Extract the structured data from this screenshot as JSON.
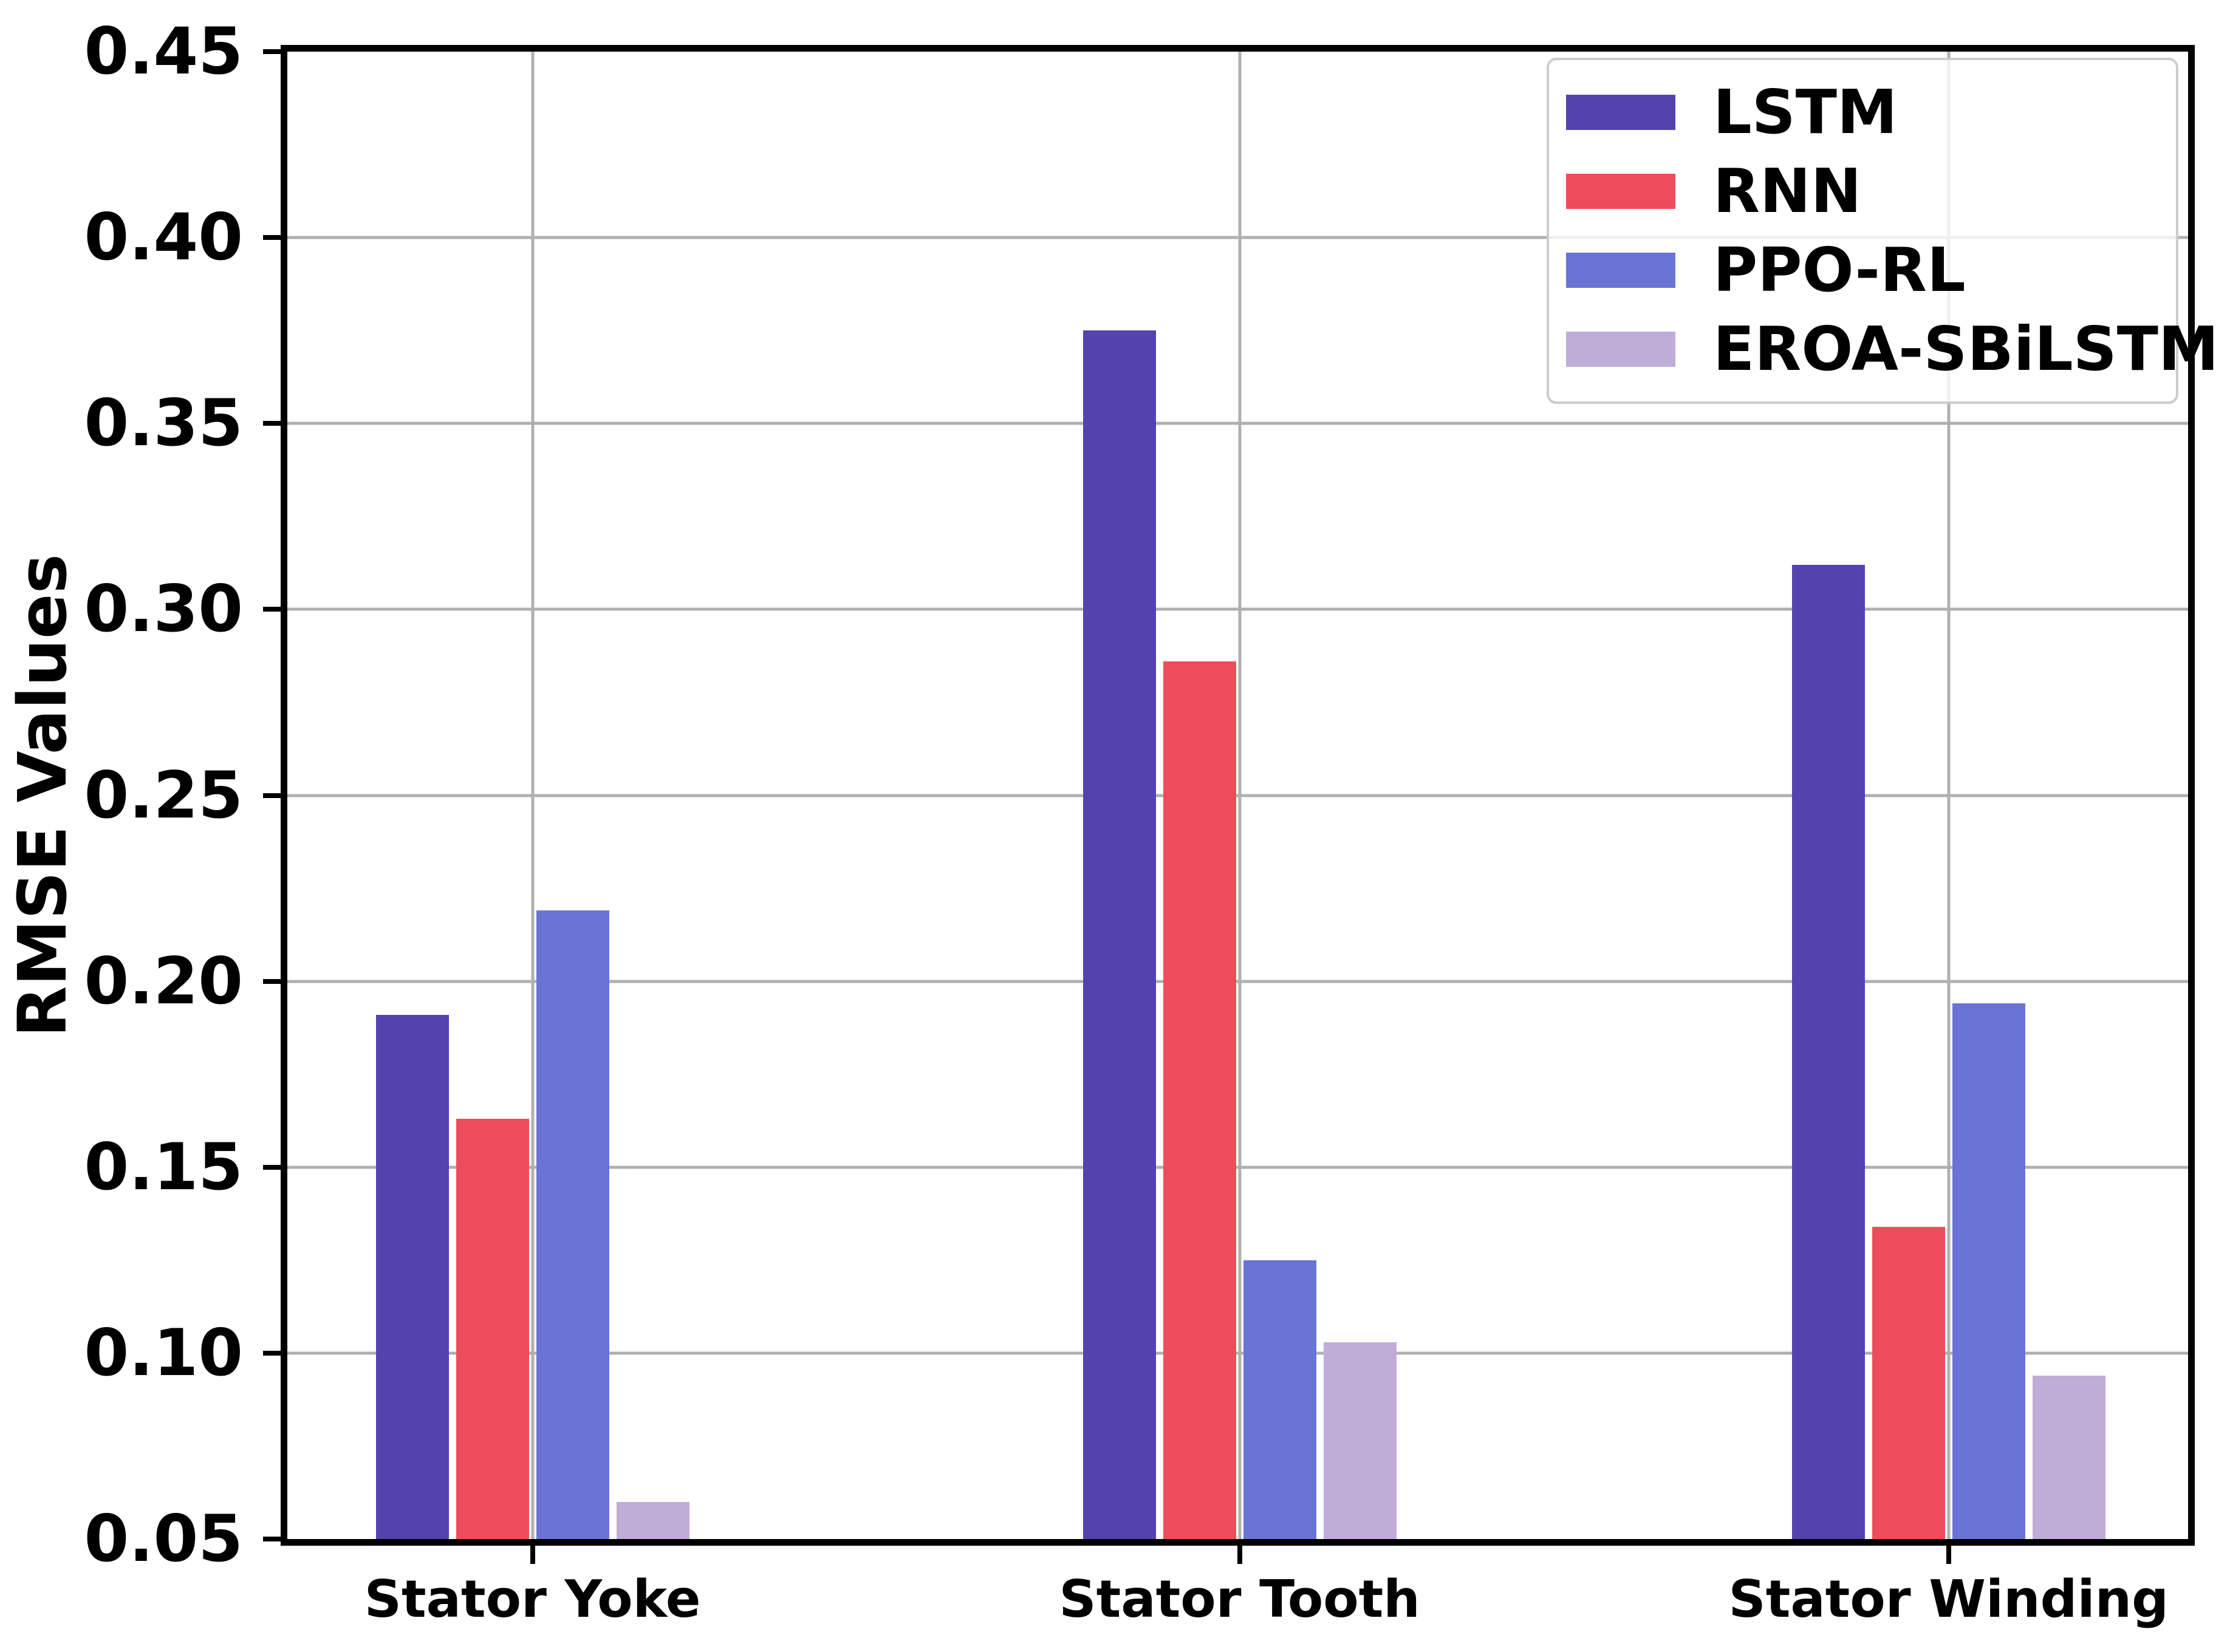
{
  "chart_data": {
    "type": "bar",
    "title": "",
    "xlabel": "",
    "ylabel": "RMSE Values",
    "categories": [
      "Stator Yoke",
      "Stator Tooth",
      "Stator Winding"
    ],
    "series": [
      {
        "name": "LSTM",
        "color": "#5442af",
        "values": [
          0.191,
          0.375,
          0.312
        ]
      },
      {
        "name": "RNN",
        "color": "#ef4c5b",
        "values": [
          0.163,
          0.286,
          0.134
        ]
      },
      {
        "name": "PPO-RL",
        "color": "#6a74d6",
        "values": [
          0.219,
          0.125,
          0.194
        ]
      },
      {
        "name": "EROA-SBiLSTM",
        "color": "#bfadd8",
        "values": [
          0.06,
          0.103,
          0.094
        ]
      }
    ],
    "ylim": [
      0.05,
      0.45
    ],
    "ytick_step": 0.05,
    "ytick_labels": [
      "0.45",
      "0.40",
      "0.35",
      "0.30",
      "0.25",
      "0.20",
      "0.15",
      "0.10",
      "0.05"
    ],
    "grid": true,
    "legend_position": "upper right",
    "colors": {
      "grid": "#b0b0b0",
      "spine": "#000000",
      "legend_border": "#cccccc",
      "text": "#000000",
      "background": "#ffffff"
    }
  }
}
